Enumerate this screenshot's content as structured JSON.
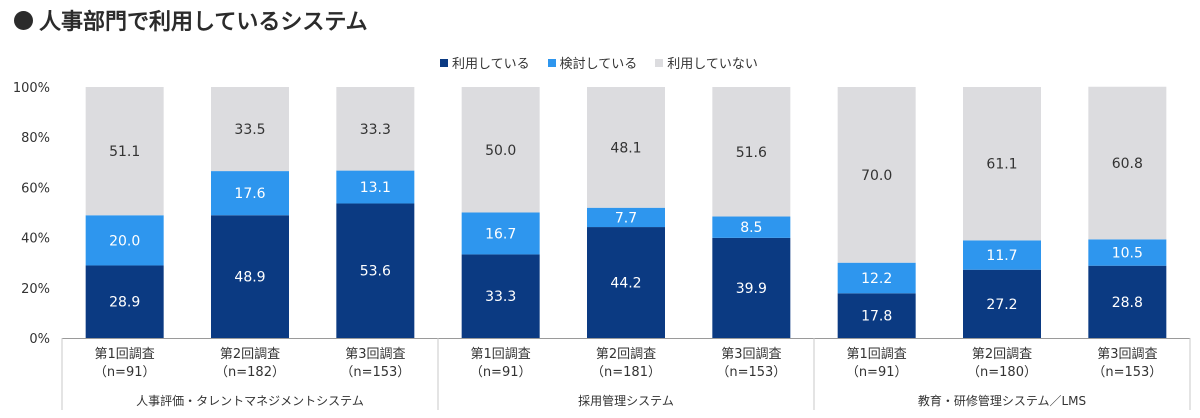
{
  "title": "人事部門で利用しているシステム",
  "legend": [
    {
      "name": "利用している",
      "color": "#0b3a82"
    },
    {
      "name": "検討している",
      "color": "#2e96ee"
    },
    {
      "name": "利用していない",
      "color": "#dcdcdf"
    }
  ],
  "chart_data": {
    "type": "bar",
    "stacked": true,
    "title": "人事部門で利用しているシステム",
    "ylim": [
      0,
      100
    ],
    "yticks": [
      "0%",
      "20%",
      "40%",
      "60%",
      "80%",
      "100%"
    ],
    "legend_position": "top-center",
    "groups": [
      {
        "name": "人事評価・タレントマネジメントシステム",
        "categories": [
          {
            "line1": "第1回調査",
            "line2": "（n=91）"
          },
          {
            "line1": "第2回調査",
            "line2": "（n=182）"
          },
          {
            "line1": "第3回調査",
            "line2": "（n=153）"
          }
        ]
      },
      {
        "name": "採用管理システム",
        "categories": [
          {
            "line1": "第1回調査",
            "line2": "（n=91）"
          },
          {
            "line1": "第2回調査",
            "line2": "（n=181）"
          },
          {
            "line1": "第3回調査",
            "line2": "（n=153）"
          }
        ]
      },
      {
        "name": "教育・研修管理システム／LMS",
        "categories": [
          {
            "line1": "第1回調査",
            "line2": "（n=91）"
          },
          {
            "line1": "第2回調査",
            "line2": "（n=180）"
          },
          {
            "line1": "第3回調査",
            "line2": "（n=153）"
          }
        ]
      }
    ],
    "series": [
      {
        "name": "利用している",
        "color": "#0b3a82",
        "label_color": "#ffffff",
        "values": [
          "28.9",
          "48.9",
          "53.6",
          "33.3",
          "44.2",
          "39.9",
          "17.8",
          "27.2",
          "28.8"
        ]
      },
      {
        "name": "検討している",
        "color": "#2e96ee",
        "label_color": "#ffffff",
        "values": [
          "20.0",
          "17.6",
          "13.1",
          "16.7",
          "7.7",
          "8.5",
          "12.2",
          "11.7",
          "10.5"
        ]
      },
      {
        "name": "利用していない",
        "color": "#dcdcdf",
        "label_color": "#333333",
        "values": [
          "51.1",
          "33.5",
          "33.3",
          "50.0",
          "48.1",
          "51.6",
          "70.0",
          "61.1",
          "60.8"
        ]
      }
    ]
  }
}
